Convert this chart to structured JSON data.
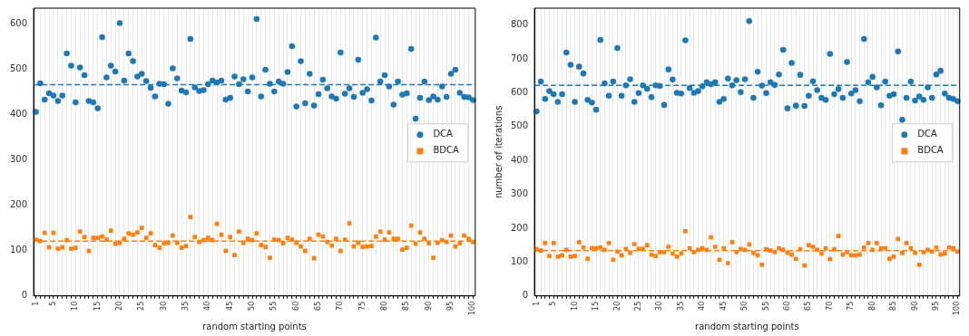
{
  "chart_data": [
    {
      "type": "scatter",
      "xlabel": "random starting points",
      "ylim": [
        0,
        635
      ],
      "yticks": [
        0,
        100,
        200,
        300,
        400,
        500,
        600
      ],
      "categories": [
        "1",
        null,
        null,
        null,
        "5",
        null,
        null,
        null,
        null,
        "10",
        null,
        null,
        null,
        null,
        "15",
        null,
        null,
        null,
        null,
        "20",
        null,
        null,
        null,
        null,
        "25",
        null,
        null,
        null,
        null,
        "30",
        null,
        null,
        null,
        null,
        "35",
        null,
        null,
        null,
        null,
        "40",
        null,
        null,
        null,
        null,
        "45",
        null,
        null,
        null,
        null,
        "50",
        null,
        null,
        null,
        null,
        "55",
        null,
        null,
        null,
        null,
        "60",
        null,
        null,
        null,
        null,
        "65",
        null,
        null,
        null,
        null,
        "70",
        null,
        null,
        null,
        null,
        "75",
        null,
        null,
        null,
        null,
        "80",
        null,
        null,
        null,
        null,
        "85",
        null,
        null,
        null,
        null,
        "90",
        null,
        null,
        null,
        null,
        "95",
        null,
        null,
        null,
        null,
        "100"
      ],
      "grid": "x",
      "legend": "right",
      "ref_lines": [
        {
          "axis": "y",
          "value": 466,
          "color": "#1f77b4",
          "line_style": "dashed"
        },
        {
          "axis": "y",
          "value": 121,
          "color": "#ff7f0e",
          "line_style": "dashed"
        }
      ],
      "series": [
        {
          "name": "DCA",
          "color": "#1f77b4",
          "marker": "circle",
          "values": [
            406,
            469,
            433,
            447,
            442,
            430,
            442,
            535,
            508,
            427,
            504,
            487,
            430,
            427,
            414,
            571,
            482,
            508,
            495,
            602,
            475,
            535,
            518,
            484,
            490,
            474,
            459,
            440,
            468,
            467,
            424,
            502,
            480,
            453,
            449,
            567,
            460,
            452,
            454,
            467,
            475,
            471,
            475,
            433,
            437,
            484,
            467,
            478,
            451,
            482,
            611,
            440,
            499,
            468,
            451,
            473,
            468,
            494,
            551,
            418,
            518,
            425,
            490,
            420,
            445,
            477,
            458,
            440,
            435,
            537,
            446,
            458,
            439,
            521,
            448,
            456,
            431,
            570,
            473,
            487,
            462,
            422,
            473,
            444,
            447,
            545,
            391,
            437,
            473,
            432,
            440,
            433,
            462,
            439,
            490,
            499,
            448,
            439,
            438,
            432
          ]
        },
        {
          "name": "BDCA",
          "color": "#ff7f0e",
          "marker": "square",
          "values": [
            124,
            121,
            139,
            107,
            139,
            104,
            107,
            123,
            104,
            106,
            142,
            130,
            99,
            128,
            128,
            131,
            124,
            144,
            115,
            117,
            126,
            138,
            135,
            140,
            150,
            128,
            138,
            112,
            106,
            116,
            117,
            133,
            117,
            106,
            110,
            174,
            130,
            119,
            123,
            128,
            123,
            159,
            135,
            99,
            130,
            90,
            142,
            117,
            126,
            123,
            138,
            112,
            108,
            84,
            124,
            123,
            116,
            128,
            124,
            117,
            109,
            99,
            126,
            83,
            135,
            131,
            119,
            111,
            126,
            99,
            124,
            160,
            109,
            117,
            108,
            109,
            110,
            131,
            142,
            124,
            140,
            126,
            126,
            102,
            106,
            155,
            115,
            140,
            126,
            116,
            84,
            117,
            123,
            119,
            133,
            109,
            116,
            133,
            126,
            119
          ]
        }
      ]
    },
    {
      "type": "scatter",
      "xlabel": "random starting points",
      "ylabel": "number of iterations",
      "ylim": [
        0,
        850
      ],
      "yticks": [
        0,
        100,
        200,
        300,
        400,
        500,
        600,
        700,
        800
      ],
      "categories": [
        "1",
        null,
        null,
        null,
        "5",
        null,
        null,
        null,
        null,
        "10",
        null,
        null,
        null,
        null,
        "15",
        null,
        null,
        null,
        null,
        "20",
        null,
        null,
        null,
        null,
        "25",
        null,
        null,
        null,
        null,
        "30",
        null,
        null,
        null,
        null,
        "35",
        null,
        null,
        null,
        null,
        "40",
        null,
        null,
        null,
        null,
        "45",
        null,
        null,
        null,
        null,
        "50",
        null,
        null,
        null,
        null,
        "55",
        null,
        null,
        null,
        null,
        "60",
        null,
        null,
        null,
        null,
        "65",
        null,
        null,
        null,
        null,
        "70",
        null,
        null,
        null,
        null,
        "75",
        null,
        null,
        null,
        null,
        "80",
        null,
        null,
        null,
        null,
        "85",
        null,
        null,
        null,
        null,
        "90",
        null,
        null,
        null,
        null,
        "95",
        null,
        null,
        null,
        null,
        "100"
      ],
      "grid": "x",
      "legend": "right",
      "ref_lines": [
        {
          "axis": "y",
          "value": 622,
          "color": "#1f77b4",
          "line_style": "dashed"
        },
        {
          "axis": "y",
          "value": 134,
          "color": "#ff7f0e",
          "line_style": "dashed"
        }
      ],
      "series": [
        {
          "name": "DCA",
          "color": "#1f77b4",
          "marker": "circle",
          "values": [
            545,
            633,
            582,
            605,
            596,
            573,
            596,
            719,
            683,
            573,
            677,
            657,
            579,
            571,
            550,
            756,
            628,
            591,
            633,
            732,
            591,
            622,
            640,
            573,
            599,
            622,
            612,
            587,
            622,
            620,
            564,
            669,
            639,
            600,
            598,
            755,
            614,
            600,
            605,
            619,
            631,
            625,
            631,
            573,
            582,
            642,
            622,
            637,
            602,
            640,
            812,
            585,
            662,
            621,
            599,
            631,
            623,
            654,
            727,
            554,
            688,
            562,
            653,
            561,
            591,
            634,
            608,
            585,
            579,
            715,
            596,
            611,
            585,
            691,
            598,
            608,
            575,
            759,
            631,
            647,
            616,
            563,
            633,
            591,
            596,
            722,
            520,
            585,
            633,
            577,
            589,
            579,
            616,
            585,
            654,
            665,
            598,
            585,
            582,
            575
          ]
        },
        {
          "name": "BDCA",
          "color": "#ff7f0e",
          "marker": "square",
          "values": [
            138,
            134,
            156,
            118,
            156,
            116,
            120,
            136,
            116,
            118,
            159,
            143,
            110,
            141,
            141,
            143,
            136,
            156,
            107,
            131,
            120,
            139,
            127,
            153,
            139,
            139,
            150,
            122,
            118,
            129,
            129,
            145,
            125,
            116,
            125,
            191,
            141,
            129,
            136,
            141,
            136,
            173,
            145,
            107,
            141,
            97,
            159,
            129,
            139,
            136,
            152,
            127,
            120,
            92,
            138,
            134,
            129,
            141,
            136,
            127,
            122,
            109,
            138,
            90,
            150,
            145,
            136,
            125,
            141,
            109,
            138,
            177,
            122,
            129,
            120,
            120,
            122,
            143,
            156,
            136,
            156,
            141,
            141,
            110,
            116,
            168,
            127,
            156,
            141,
            127,
            92,
            129,
            136,
            131,
            143,
            122,
            125,
            143,
            141,
            131
          ]
        }
      ]
    }
  ]
}
